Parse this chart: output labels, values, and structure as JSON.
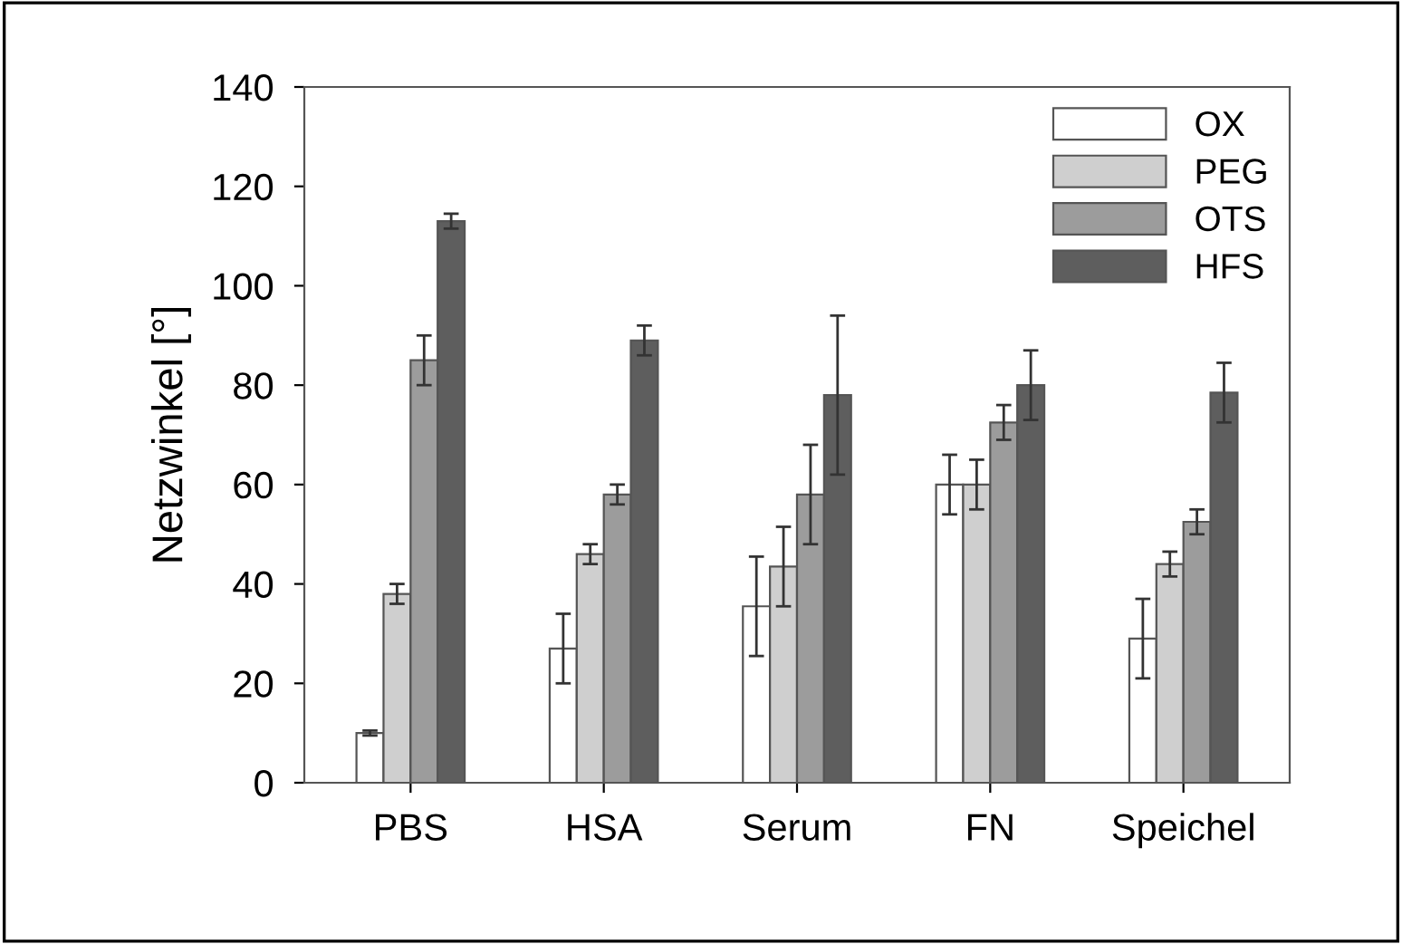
{
  "chart_data": {
    "type": "bar",
    "ylabel": "Netzwinkel [°]",
    "categories": [
      "PBS",
      "HSA",
      "Serum",
      "FN",
      "Speichel"
    ],
    "series": [
      {
        "name": "OX",
        "color": "#ffffff",
        "values": [
          10,
          27,
          35.5,
          60,
          29
        ],
        "errors": [
          0.5,
          7,
          10,
          6,
          8
        ]
      },
      {
        "name": "PEG",
        "color": "#cfcfcf",
        "values": [
          38,
          46,
          43.5,
          60,
          44
        ],
        "errors": [
          2,
          2,
          8,
          5,
          2.5
        ]
      },
      {
        "name": "OTS",
        "color": "#9c9c9c",
        "values": [
          85,
          58,
          58,
          72.5,
          52.5
        ],
        "errors": [
          5,
          2,
          10,
          3.5,
          2.5
        ]
      },
      {
        "name": "HFS",
        "color": "#5e5e5e",
        "values": [
          113,
          89,
          78,
          80,
          78.5
        ],
        "errors": [
          1.5,
          3,
          16,
          7,
          6
        ]
      }
    ],
    "ylim": [
      0,
      140
    ],
    "yticks": [
      0,
      20,
      40,
      60,
      80,
      100,
      120,
      140
    ],
    "legend": "top right",
    "grid": false
  }
}
